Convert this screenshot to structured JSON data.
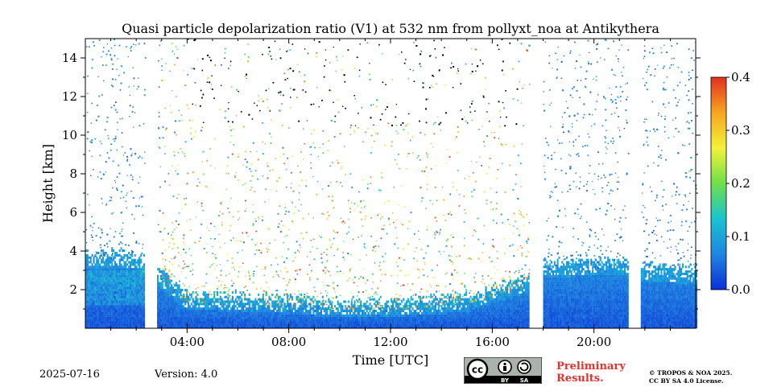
{
  "chart_data": {
    "type": "heatmap",
    "title": "Quasi particle depolarization ratio (V1) at 532 nm from pollyxt_noa at Antikythera",
    "xlabel": "Time [UTC]",
    "ylabel": "Height [km]",
    "xlim_hours": [
      0,
      24
    ],
    "ylim_km": [
      0,
      15
    ],
    "x_tick_hours": [
      4,
      8,
      12,
      16,
      20
    ],
    "x_tick_labels": [
      "04:00",
      "08:00",
      "12:00",
      "16:00",
      "20:00"
    ],
    "y_ticks": [
      2,
      4,
      6,
      8,
      10,
      12,
      14
    ],
    "y_tick_labels": [
      "2",
      "4",
      "6",
      "8",
      "10",
      "12",
      "14"
    ],
    "colorbar": {
      "range": [
        0.0,
        0.4
      ],
      "ticks": [
        0.0,
        0.1,
        0.2,
        0.3,
        0.4
      ],
      "tick_labels": [
        "0.0",
        "0.1",
        "0.2",
        "0.3",
        "0.4"
      ],
      "colormap": [
        "#0b2fd6",
        "#1f86e0",
        "#18c4d0",
        "#6fe04a",
        "#f2f23a",
        "#f7a520",
        "#e23020"
      ]
    },
    "data_gaps_hours": [
      [
        2.35,
        2.85
      ],
      [
        17.45,
        18.0
      ],
      [
        21.35,
        21.85
      ]
    ],
    "boundary_layer_top_km": [
      {
        "t": 0,
        "h": 3.6
      },
      {
        "t": 2,
        "h": 3.5
      },
      {
        "t": 3,
        "h": 2.5
      },
      {
        "t": 4,
        "h": 1.4
      },
      {
        "t": 8,
        "h": 1.2
      },
      {
        "t": 10,
        "h": 1.0
      },
      {
        "t": 12,
        "h": 1.0
      },
      {
        "t": 15,
        "h": 1.3
      },
      {
        "t": 17.4,
        "h": 2.3
      },
      {
        "t": 18,
        "h": 3.1
      },
      {
        "t": 21.3,
        "h": 3.2
      },
      {
        "t": 22,
        "h": 2.9
      },
      {
        "t": 24,
        "h": 2.7
      }
    ]
  },
  "footer": {
    "date": "2025-07-16",
    "version": "Version: 4.0",
    "preliminary": "Preliminary\nResults.",
    "copyright_line1": "© TROPOS & NOA 2025.",
    "copyright_line2": "CC BY SA 4.0 License.",
    "cc_label": "cc",
    "by_label": "BY",
    "sa_label": "SA"
  }
}
